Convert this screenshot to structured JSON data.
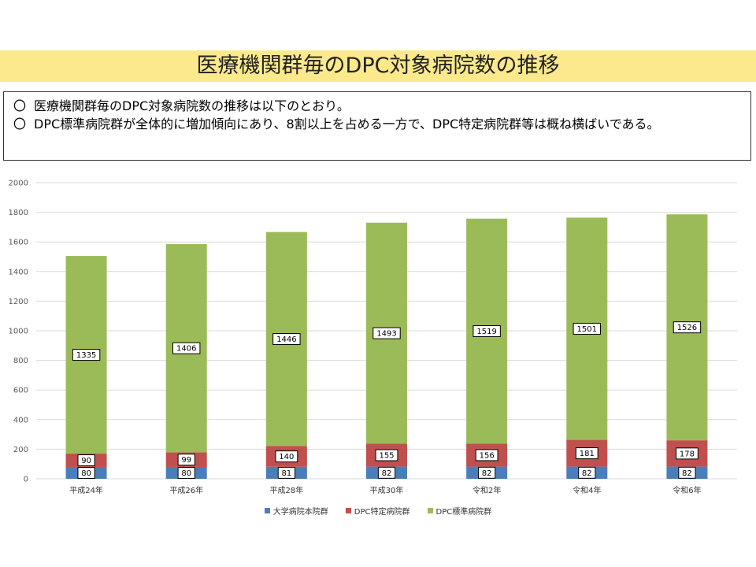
{
  "slide": {
    "title": "医療機関群毎のDPC対象病院数の推移",
    "bullets": [
      {
        "mark": "〇",
        "text": "医療機関群毎のDPC対象病院数の推移は以下のとおり。"
      },
      {
        "mark": "〇",
        "text": "DPC標準病院群が全体的に増加傾向にあり、8割以上を占める一方で、DPC特定病院群等は概ね横ばいである。"
      }
    ]
  },
  "chart_data": {
    "type": "bar",
    "stacked": true,
    "categories": [
      "平成24年",
      "平成26年",
      "平成28年",
      "平成30年",
      "令和2年",
      "令和4年",
      "令和6年"
    ],
    "series": [
      {
        "name": "大学病院本院群",
        "color": "#4a7ebb",
        "values": [
          80,
          80,
          81,
          82,
          82,
          82,
          82
        ]
      },
      {
        "name": "DPC特定病院群",
        "color": "#c0504d",
        "values": [
          90,
          99,
          140,
          155,
          156,
          181,
          178
        ]
      },
      {
        "name": "DPC標準病院群",
        "color": "#9bbb59",
        "values": [
          1335,
          1406,
          1446,
          1493,
          1519,
          1501,
          1526
        ]
      }
    ],
    "ylim": [
      0,
      2000
    ],
    "yticks": [
      0,
      200,
      400,
      600,
      800,
      1000,
      1200,
      1400,
      1600,
      1800,
      2000
    ],
    "grid": true,
    "legend_position": "bottom",
    "xlabel": "",
    "ylabel": "",
    "title": ""
  }
}
